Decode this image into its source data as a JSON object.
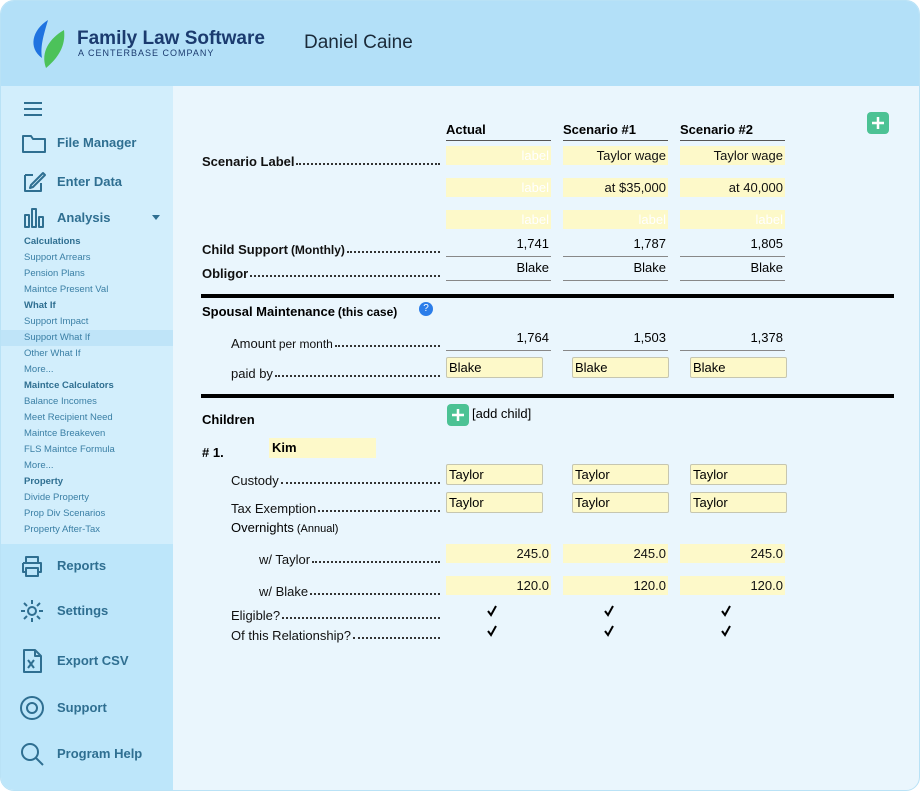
{
  "header": {
    "brand": "Family Law Software",
    "tagline": "A CENTERBASE COMPANY",
    "client": "Daniel Caine"
  },
  "sidebar": {
    "menu": [
      "File Manager",
      "Enter Data",
      "Analysis"
    ],
    "sections": [
      {
        "title": "Calculations",
        "items": [
          "Support Arrears",
          "Pension Plans",
          "Maintce Present Val"
        ]
      },
      {
        "title": "What If",
        "items": [
          "Support Impact",
          "Support What If",
          "Other What If",
          "More..."
        ]
      },
      {
        "title": "Maintce Calculators",
        "items": [
          "Balance Incomes",
          "Meet Recipient Need",
          "Maintce Breakeven",
          "FLS Maintce Formula",
          "More..."
        ]
      },
      {
        "title": "Property",
        "items": [
          "Divide Property",
          "Prop Div Scenarios",
          "Property After-Tax"
        ]
      }
    ],
    "selected": [
      1,
      1
    ],
    "bottom": [
      "Reports",
      "Settings",
      "Export CSV",
      "Support",
      "Program Help"
    ]
  },
  "columns": [
    "Actual",
    "Scenario #1",
    "Scenario #2"
  ],
  "scenario_label": {
    "label": "Scenario Label",
    "rows": [
      [
        {
          "text": "label",
          "placeholder": true
        },
        {
          "text": "Taylor wage"
        },
        {
          "text": "Taylor wage"
        }
      ],
      [
        {
          "text": "label",
          "placeholder": true
        },
        {
          "text": "at $35,000"
        },
        {
          "text": "at 40,000"
        }
      ],
      [
        {
          "text": "label",
          "placeholder": true
        },
        {
          "text": "label",
          "placeholder": true
        },
        {
          "text": "label",
          "placeholder": true
        }
      ]
    ]
  },
  "child_support": {
    "label": "Child Support",
    "note": "(Monthly)",
    "values": [
      "1,741",
      "1,787",
      "1,805"
    ]
  },
  "obligor": {
    "label": "Obligor",
    "values": [
      "Blake",
      "Blake",
      "Blake"
    ]
  },
  "spousal": {
    "title": "Spousal Maintenance",
    "note": "(this case)",
    "amount": {
      "label": "Amount",
      "note": "per month",
      "values": [
        "1,764",
        "1,503",
        "1,378"
      ]
    },
    "paid_by": {
      "label": "paid by",
      "values": [
        "Blake",
        "Blake",
        "Blake"
      ]
    }
  },
  "children": {
    "title": "Children",
    "add": "[add child]",
    "number": "# 1.",
    "name": "Kim",
    "custody": {
      "label": "Custody",
      "values": [
        "Taylor",
        "Taylor",
        "Taylor"
      ]
    },
    "tax_exemption": {
      "label": "Tax Exemption",
      "values": [
        "Taylor",
        "Taylor",
        "Taylor"
      ]
    },
    "overnights": {
      "label": "Overnights",
      "note": "(Annual)"
    },
    "w_taylor": {
      "label": "w/ Taylor",
      "values": [
        "245.0",
        "245.0",
        "245.0"
      ]
    },
    "w_blake": {
      "label": "w/ Blake",
      "values": [
        "120.0",
        "120.0",
        "120.0"
      ]
    },
    "eligible": {
      "label": "Eligible?",
      "checked": [
        true,
        true,
        true
      ]
    },
    "relationship": {
      "label": "Of this Relationship?",
      "checked": [
        true,
        true,
        true
      ]
    }
  }
}
